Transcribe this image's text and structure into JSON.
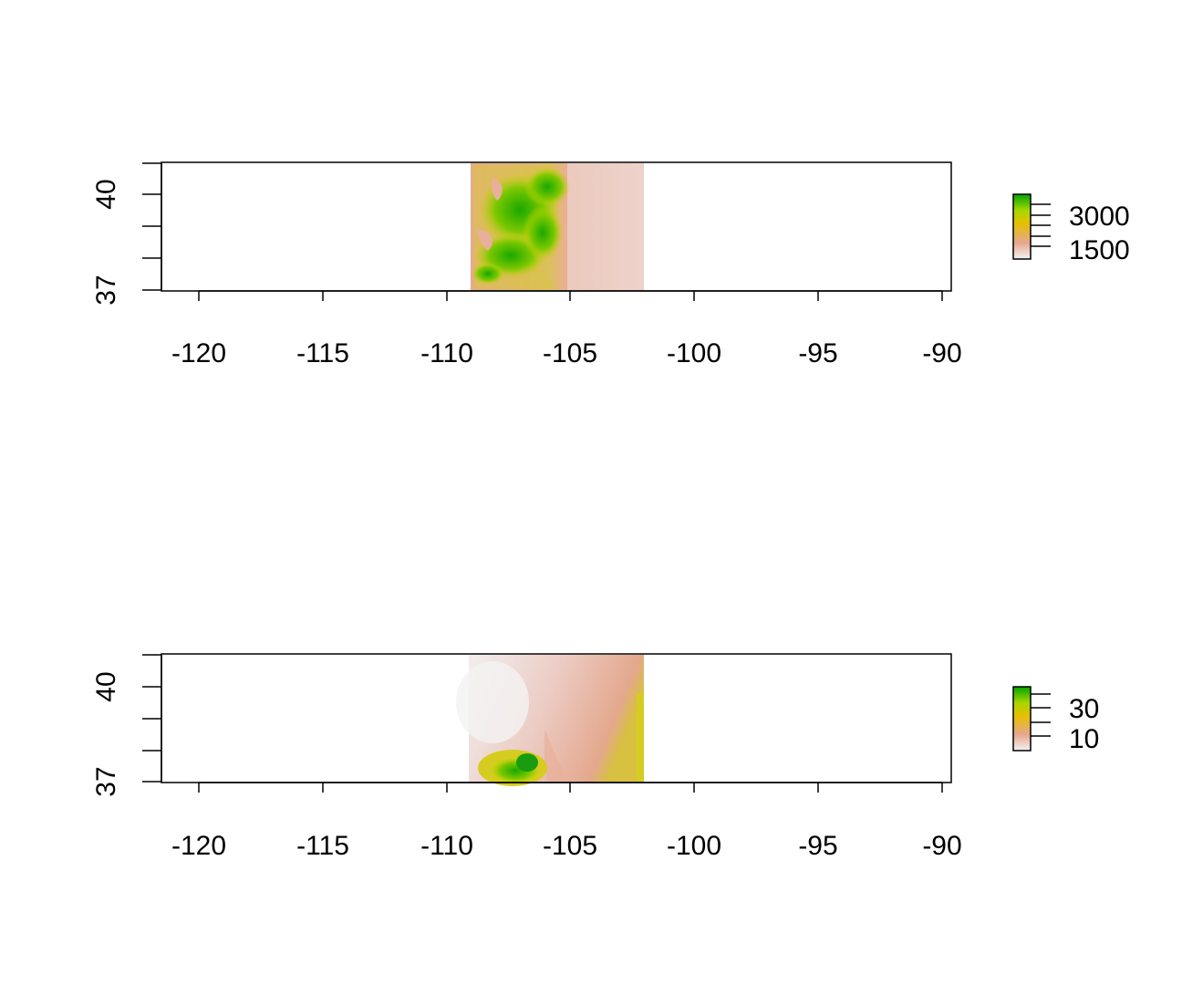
{
  "panels": [
    {
      "id": "elevation",
      "x_ticks": [
        "-120",
        "-115",
        "-110",
        "-105",
        "-100",
        "-95",
        "-90"
      ],
      "y_ticks": [
        "37",
        "40"
      ],
      "legend_ticks": [
        "3000",
        "1500"
      ]
    },
    {
      "id": "second-layer",
      "x_ticks": [
        "-120",
        "-115",
        "-110",
        "-105",
        "-100",
        "-95",
        "-90"
      ],
      "y_ticks": [
        "37",
        "40"
      ],
      "legend_ticks": [
        "30",
        "10"
      ]
    }
  ],
  "chart_data": [
    {
      "type": "heatmap",
      "title": "",
      "xlabel": "",
      "ylabel": "",
      "xlim": [
        -121.5,
        -89.6
      ],
      "ylim": [
        36.9,
        41.1
      ],
      "x_ticks": [
        -120,
        -115,
        -110,
        -105,
        -100,
        -95,
        -90
      ],
      "y_ticks": [
        37,
        38,
        39,
        40,
        41
      ],
      "y_tick_labels": {
        "37": "37",
        "40": "40"
      },
      "raster_extent": {
        "xmin": -109.06,
        "xmax": -102.04,
        "ymin": 36.99,
        "ymax": 41.0
      },
      "legend": {
        "min": 1000,
        "max": 4400,
        "ticks": [
          1500,
          2000,
          2500,
          3000,
          3500
        ],
        "labeled": [
          1500,
          3000
        ],
        "placement": "right"
      },
      "colors": [
        "#f2f2f2",
        "#e8a68f",
        "#e6c000",
        "#a6d700",
        "#00a600"
      ]
    },
    {
      "type": "heatmap",
      "title": "",
      "xlabel": "",
      "ylabel": "",
      "xlim": [
        -121.5,
        -89.6
      ],
      "ylim": [
        36.9,
        41.1
      ],
      "x_ticks": [
        -120,
        -115,
        -110,
        -105,
        -100,
        -95,
        -90
      ],
      "y_ticks": [
        37,
        38,
        39,
        40,
        41
      ],
      "y_tick_labels": {
        "37": "37",
        "40": "40"
      },
      "raster_extent": {
        "xmin": -109.12,
        "xmax": -102.04,
        "ymin": 36.99,
        "ymax": 41.0
      },
      "legend": {
        "min": 0,
        "max": 45,
        "ticks": [
          10,
          20,
          30,
          40
        ],
        "labeled": [
          10,
          30
        ],
        "placement": "right"
      },
      "colors": [
        "#f2f2f2",
        "#e8a68f",
        "#e6c000",
        "#a6d700",
        "#00a600"
      ]
    }
  ]
}
